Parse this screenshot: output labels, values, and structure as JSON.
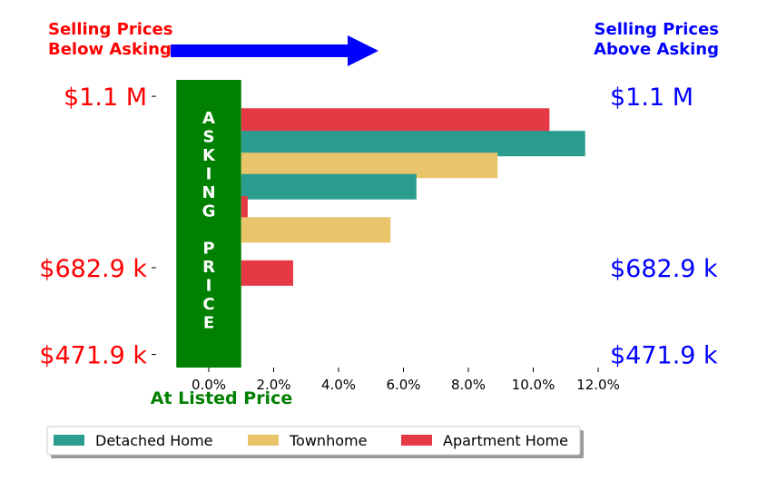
{
  "colors": {
    "below": "#ff0000",
    "above": "#0000ff",
    "asking_box": "#008000",
    "detached": "#2a9d8f",
    "townhome": "#e9c46a",
    "apartment": "#e63946"
  },
  "headers": {
    "below_line1": "Selling Prices",
    "below_line2": "Below Asking",
    "above_line1": "Selling Prices",
    "above_line2": "Above Asking"
  },
  "asking_label": [
    "A",
    "S",
    "K",
    "I",
    "N",
    "G",
    "",
    "P",
    "R",
    "I",
    "C",
    "E"
  ],
  "x_caption": "At Listed Price",
  "arrow_icon": "right-arrow-icon",
  "chart_data": {
    "type": "bar",
    "orientation": "horizontal",
    "x_format": "percent",
    "xlim": [
      -1.0,
      12.0
    ],
    "xticks": [
      0,
      2,
      4,
      6,
      8,
      10,
      12
    ],
    "xtick_labels": [
      "0.0%",
      "2.0%",
      "4.0%",
      "6.0%",
      "8.0%",
      "10.0%",
      "12.0%"
    ],
    "ylim": [
      440000,
      1140000
    ],
    "price_levels": [
      {
        "value": 1100000,
        "label": "$1.1 M"
      },
      {
        "value": 682900,
        "label": "$682.9 k"
      },
      {
        "value": 471900,
        "label": "$471.9 k"
      }
    ],
    "bars": [
      {
        "type": "Apartment Home",
        "price": 1040000,
        "pct": 10.5
      },
      {
        "type": "Detached Home",
        "price": 985000,
        "pct": 11.6
      },
      {
        "type": "Townhome",
        "price": 932000,
        "pct": 8.9
      },
      {
        "type": "Detached Home",
        "price": 880000,
        "pct": 6.4
      },
      {
        "type": "Apartment Home",
        "price": 826000,
        "pct": 1.2
      },
      {
        "type": "Townhome",
        "price": 775000,
        "pct": 5.6
      },
      {
        "type": "Apartment Home",
        "price": 670000,
        "pct": 2.6
      }
    ],
    "legend": {
      "placement": "bottom",
      "entries": [
        "Detached Home",
        "Townhome",
        "Apartment Home"
      ]
    }
  }
}
